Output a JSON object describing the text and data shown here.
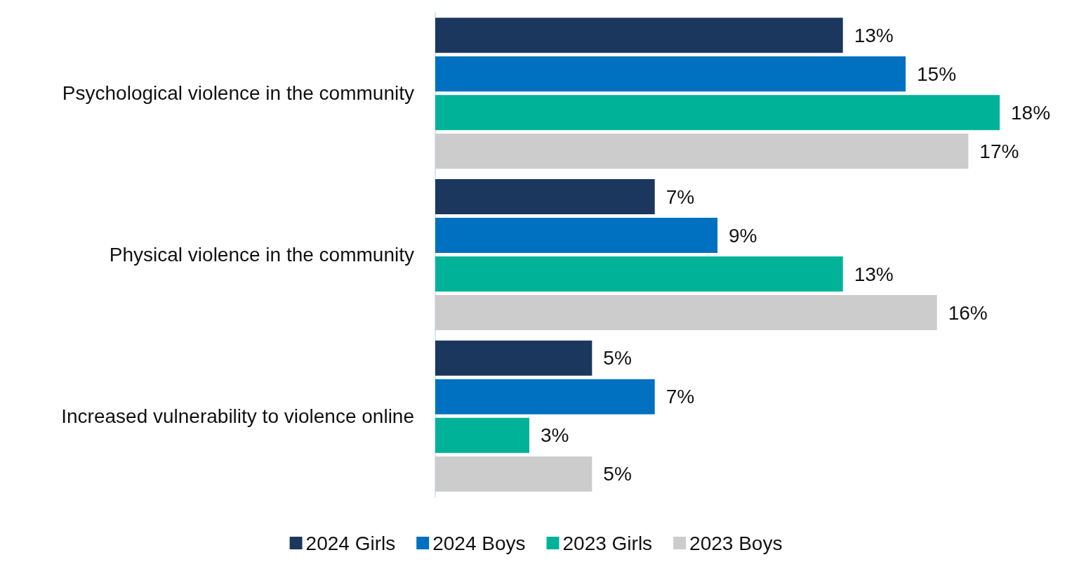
{
  "chart_data": {
    "type": "bar",
    "orientation": "horizontal",
    "categories": [
      "Psychological violence in the community",
      "Physical violence in the community",
      "Increased vulnerability to violence online"
    ],
    "series": [
      {
        "name": "2024 Girls",
        "color": "#1b375e",
        "values": [
          13,
          7,
          5
        ],
        "value_labels": [
          "13%",
          "7%",
          "5%"
        ]
      },
      {
        "name": "2024 Boys",
        "color": "#0070c0",
        "values": [
          15,
          9,
          7
        ],
        "value_labels": [
          "15%",
          "9%",
          "7%"
        ]
      },
      {
        "name": "2023 Girls",
        "color": "#00b398",
        "values": [
          18,
          13,
          3
        ],
        "value_labels": [
          "18%",
          "13%",
          "3%"
        ]
      },
      {
        "name": "2023 Boys",
        "color": "#cccccc",
        "values": [
          17,
          16,
          5
        ],
        "value_labels": [
          "17%",
          "16%",
          "5%"
        ]
      }
    ],
    "legend": "bottom",
    "tick_labels": "y"
  }
}
